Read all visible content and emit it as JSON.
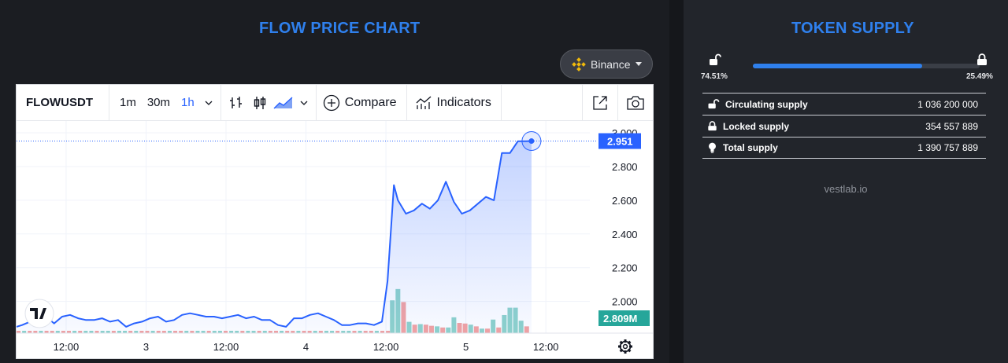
{
  "left": {
    "title": "FLOW PRICE CHART",
    "exchange": {
      "label": "Binance",
      "icon": "binance-logo"
    }
  },
  "toolbar": {
    "symbol": "FLOWUSDT",
    "timeframes": [
      "1m",
      "30m",
      "1h"
    ],
    "active_timeframe": "1h",
    "compare_label": "Compare",
    "indicators_label": "Indicators",
    "icons": [
      "chevron-down-icon",
      "bars-icon",
      "candles-icon",
      "area-icon",
      "plus-circle-icon",
      "indicators-icon",
      "expand-icon",
      "camera-icon"
    ]
  },
  "chart_data": {
    "type": "line",
    "title": "",
    "price_axis": [
      "3.000",
      "2.800",
      "2.600",
      "2.400",
      "2.200",
      "2.000"
    ],
    "price_tag": "2.951",
    "volume_tag": "2.809M",
    "ylim": [
      1.84,
      3.07
    ],
    "x_ticks": [
      "12:00",
      "3",
      "12:00",
      "4",
      "12:00",
      "5",
      "12:00"
    ],
    "x_tick_pos": [
      1.0,
      2.0,
      3.0,
      4.0,
      5.0,
      6.0,
      7.0
    ],
    "x_range": [
      0.38,
      7.55
    ],
    "series": [
      {
        "x": [
          0.38,
          0.45,
          0.55,
          0.65,
          0.75,
          0.85,
          0.95,
          1.05,
          1.15,
          1.25,
          1.35,
          1.45,
          1.55,
          1.65,
          1.75,
          1.85,
          1.95,
          2.05,
          2.15,
          2.25,
          2.35,
          2.45,
          2.55,
          2.65,
          2.75,
          2.85,
          2.95,
          3.05,
          3.15,
          3.25,
          3.35,
          3.45,
          3.55,
          3.65,
          3.75,
          3.85,
          3.95,
          4.05,
          4.15,
          4.25,
          4.35,
          4.45,
          4.55,
          4.65,
          4.75,
          4.85,
          4.95,
          5.02,
          5.1,
          5.15,
          5.25,
          5.35,
          5.45,
          5.55,
          5.65,
          5.75,
          5.85,
          5.95,
          6.05,
          6.15,
          6.25,
          6.35,
          6.45,
          6.55,
          6.65,
          6.75,
          6.82
        ],
        "values": [
          1.85,
          1.86,
          1.88,
          1.89,
          1.91,
          1.87,
          1.91,
          1.92,
          1.9,
          1.89,
          1.89,
          1.9,
          1.88,
          1.89,
          1.85,
          1.87,
          1.88,
          1.9,
          1.91,
          1.88,
          1.89,
          1.92,
          1.93,
          1.92,
          1.91,
          1.91,
          1.9,
          1.91,
          1.92,
          1.9,
          1.91,
          1.89,
          1.89,
          1.86,
          1.85,
          1.9,
          1.9,
          1.92,
          1.93,
          1.91,
          1.89,
          1.86,
          1.86,
          1.87,
          1.87,
          1.86,
          1.88,
          2.12,
          2.69,
          2.6,
          2.52,
          2.54,
          2.58,
          2.55,
          2.6,
          2.71,
          2.59,
          2.52,
          2.54,
          2.58,
          2.62,
          2.6,
          2.88,
          2.88,
          2.95,
          2.95,
          2.951
        ]
      }
    ],
    "volume": {
      "x": [
        5.08,
        5.15,
        5.22,
        5.29,
        5.36,
        5.43,
        5.5,
        5.57,
        5.64,
        5.71,
        5.78,
        5.85,
        5.92,
        5.99,
        6.06,
        6.13,
        6.2,
        6.27,
        6.34,
        6.41,
        6.48,
        6.55,
        6.62,
        6.69,
        6.76
      ],
      "values": [
        0.58,
        0.78,
        0.55,
        0.2,
        0.15,
        0.16,
        0.15,
        0.13,
        0.12,
        0.1,
        0.1,
        0.28,
        0.18,
        0.17,
        0.15,
        0.12,
        0.08,
        0.08,
        0.24,
        0.1,
        0.32,
        0.45,
        0.45,
        0.22,
        0.12
      ],
      "up": [
        true,
        true,
        false,
        true,
        false,
        true,
        false,
        false,
        true,
        false,
        true,
        true,
        false,
        false,
        true,
        false,
        true,
        false,
        true,
        false,
        true,
        true,
        true,
        true,
        false
      ]
    },
    "colors": {
      "line": "#2962ff",
      "fill": "#2962ff",
      "up": "#26a69a",
      "down": "#ef5350",
      "tag": "#2962ff",
      "vol_tag": "#26a69a"
    },
    "grid": true
  },
  "right": {
    "title": "TOKEN SUPPLY",
    "unlocked_pct": "74.51%",
    "locked_pct": "25.49%",
    "unlocked_fraction": 0.7451,
    "rows": [
      {
        "label": "Circulating supply",
        "value": "1 036 200 000",
        "icon": "unlock-icon"
      },
      {
        "label": "Locked supply",
        "value": "354 557 889",
        "icon": "lock-icon"
      },
      {
        "label": "Total supply",
        "value": "1 390 757 889",
        "icon": "bulb-icon"
      }
    ],
    "credit": "vestlab.io"
  }
}
